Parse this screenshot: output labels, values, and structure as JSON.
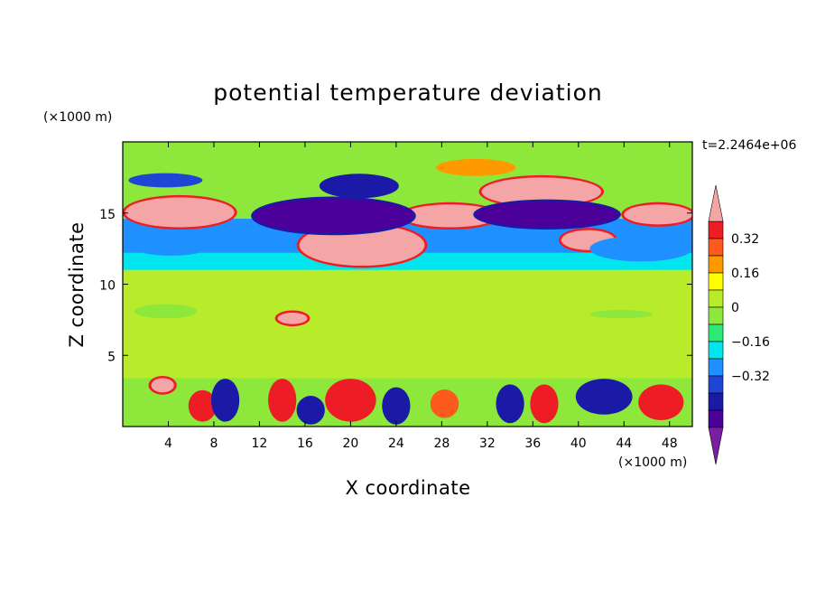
{
  "chart_data": {
    "type": "heatmap",
    "title": "potential temperature deviation",
    "xlabel": "X coordinate",
    "ylabel": "Z coordinate",
    "x_units": "(×1000 m)",
    "y_units": "(×1000 m)",
    "time_label": "t=2.2464e+06",
    "xlim": [
      0,
      50
    ],
    "ylim": [
      0,
      20
    ],
    "x_ticks": [
      4,
      8,
      12,
      16,
      20,
      24,
      28,
      32,
      36,
      40,
      44,
      48
    ],
    "x_tick_labels": [
      "4",
      "8",
      "12",
      "16",
      "20",
      "24",
      "28",
      "32",
      "36",
      "40",
      "44",
      "48"
    ],
    "y_ticks": [
      5,
      10,
      15
    ],
    "y_tick_labels": [
      "5",
      "10",
      "15"
    ],
    "colorbar": {
      "levels": [
        -0.48,
        -0.4,
        -0.32,
        -0.24,
        -0.16,
        -0.08,
        0,
        0.08,
        0.16,
        0.24,
        0.32,
        0.4,
        0.48
      ],
      "colors": [
        "#7b1fa2",
        "#4a0099",
        "#1a1aa6",
        "#1f45d4",
        "#1e90ff",
        "#00e5ee",
        "#2ee878",
        "#8ee83c",
        "#b8ec2a",
        "#ffff00",
        "#ff9900",
        "#ff5a1e",
        "#ee1c25",
        "#f4a6a6"
      ],
      "tick_values": [
        -0.32,
        -0.16,
        0,
        0.16,
        0.32
      ],
      "tick_labels": [
        "−0.32",
        "−0.16",
        "0",
        "0.16",
        "0.32"
      ],
      "extend": "both"
    },
    "features": [
      {
        "kind": "band",
        "z_range": [
          12.2,
          14.6
        ],
        "value": -0.24
      },
      {
        "kind": "band",
        "z_range": [
          11.0,
          12.2
        ],
        "value": -0.1
      },
      {
        "kind": "band",
        "z_range": [
          3.4,
          11.0
        ],
        "value": 0.08
      },
      {
        "kind": "band",
        "z_range": [
          0,
          3.4
        ],
        "value": 0.0
      },
      {
        "kind": "blob",
        "x": [
          0.2,
          9.8
        ],
        "z": [
          14.0,
          16.1
        ],
        "value": 0.5
      },
      {
        "kind": "blob",
        "x": [
          15.5,
          26.5
        ],
        "z": [
          11.3,
          14.2
        ],
        "value": 0.5
      },
      {
        "kind": "blob",
        "x": [
          24.5,
          33.0
        ],
        "z": [
          14.0,
          15.6
        ],
        "value": 0.5
      },
      {
        "kind": "blob",
        "x": [
          31.5,
          42.0
        ],
        "z": [
          15.5,
          17.5
        ],
        "value": 0.5
      },
      {
        "kind": "blob",
        "x": [
          44.0,
          50.0
        ],
        "z": [
          14.2,
          15.6
        ],
        "value": 0.5
      },
      {
        "kind": "blob",
        "x": [
          38.5,
          43.2
        ],
        "z": [
          12.4,
          13.8
        ],
        "value": 0.5
      },
      {
        "kind": "blob",
        "x": [
          11.5,
          25.5
        ],
        "z": [
          13.6,
          16.0
        ],
        "value": -0.45
      },
      {
        "kind": "blob",
        "x": [
          17.5,
          24.0
        ],
        "z": [
          16.2,
          17.6
        ],
        "value": -0.4
      },
      {
        "kind": "blob",
        "x": [
          31.0,
          43.5
        ],
        "z": [
          14.0,
          15.8
        ],
        "value": -0.45
      },
      {
        "kind": "blob",
        "x": [
          0.5,
          7.0
        ],
        "z": [
          16.8,
          17.8
        ],
        "value": -0.3
      },
      {
        "kind": "blob",
        "x": [
          1.0,
          7.5
        ],
        "z": [
          12.0,
          13.2
        ],
        "value": -0.24
      },
      {
        "kind": "blob",
        "x": [
          41.0,
          50.0
        ],
        "z": [
          11.6,
          13.4
        ],
        "value": -0.24
      },
      {
        "kind": "blob",
        "x": [
          27.5,
          34.5
        ],
        "z": [
          17.6,
          18.8
        ],
        "value": 0.24
      },
      {
        "kind": "blob",
        "x": [
          1.0,
          6.5
        ],
        "z": [
          7.6,
          8.6
        ],
        "value": 0.0
      },
      {
        "kind": "blob",
        "x": [
          41.0,
          46.5
        ],
        "z": [
          7.6,
          8.2
        ],
        "value": 0.0
      },
      {
        "kind": "blob",
        "x": [
          13.6,
          16.2
        ],
        "z": [
          7.2,
          8.0
        ],
        "value": 0.5
      },
      {
        "kind": "blob",
        "x": [
          2.5,
          4.5
        ],
        "z": [
          2.4,
          3.4
        ],
        "value": 0.5
      },
      {
        "kind": "blob",
        "x": [
          6.0,
          8.0
        ],
        "z": [
          0.5,
          2.4
        ],
        "value": 0.4
      },
      {
        "kind": "blob",
        "x": [
          13.0,
          15.0
        ],
        "z": [
          0.5,
          3.2
        ],
        "value": 0.4
      },
      {
        "kind": "blob",
        "x": [
          18.0,
          22.0
        ],
        "z": [
          0.5,
          3.2
        ],
        "value": 0.4
      },
      {
        "kind": "blob",
        "x": [
          27.0,
          29.5
        ],
        "z": [
          0.6,
          2.6
        ],
        "value": 0.36
      },
      {
        "kind": "blob",
        "x": [
          36.0,
          38.0
        ],
        "z": [
          0.4,
          2.8
        ],
        "value": 0.4
      },
      {
        "kind": "blob",
        "x": [
          45.5,
          49.0
        ],
        "z": [
          0.6,
          2.8
        ],
        "value": 0.4
      },
      {
        "kind": "blob",
        "x": [
          8.0,
          10.0
        ],
        "z": [
          0.5,
          3.2
        ],
        "value": -0.4
      },
      {
        "kind": "blob",
        "x": [
          15.5,
          17.5
        ],
        "z": [
          0.3,
          2.0
        ],
        "value": -0.4
      },
      {
        "kind": "blob",
        "x": [
          23.0,
          25.0
        ],
        "z": [
          0.3,
          2.6
        ],
        "value": -0.4
      },
      {
        "kind": "blob",
        "x": [
          33.0,
          35.0
        ],
        "z": [
          0.4,
          2.8
        ],
        "value": -0.4
      },
      {
        "kind": "blob",
        "x": [
          40.0,
          44.5
        ],
        "z": [
          1.0,
          3.2
        ],
        "value": -0.4
      }
    ],
    "grid": false,
    "legend": "right"
  }
}
